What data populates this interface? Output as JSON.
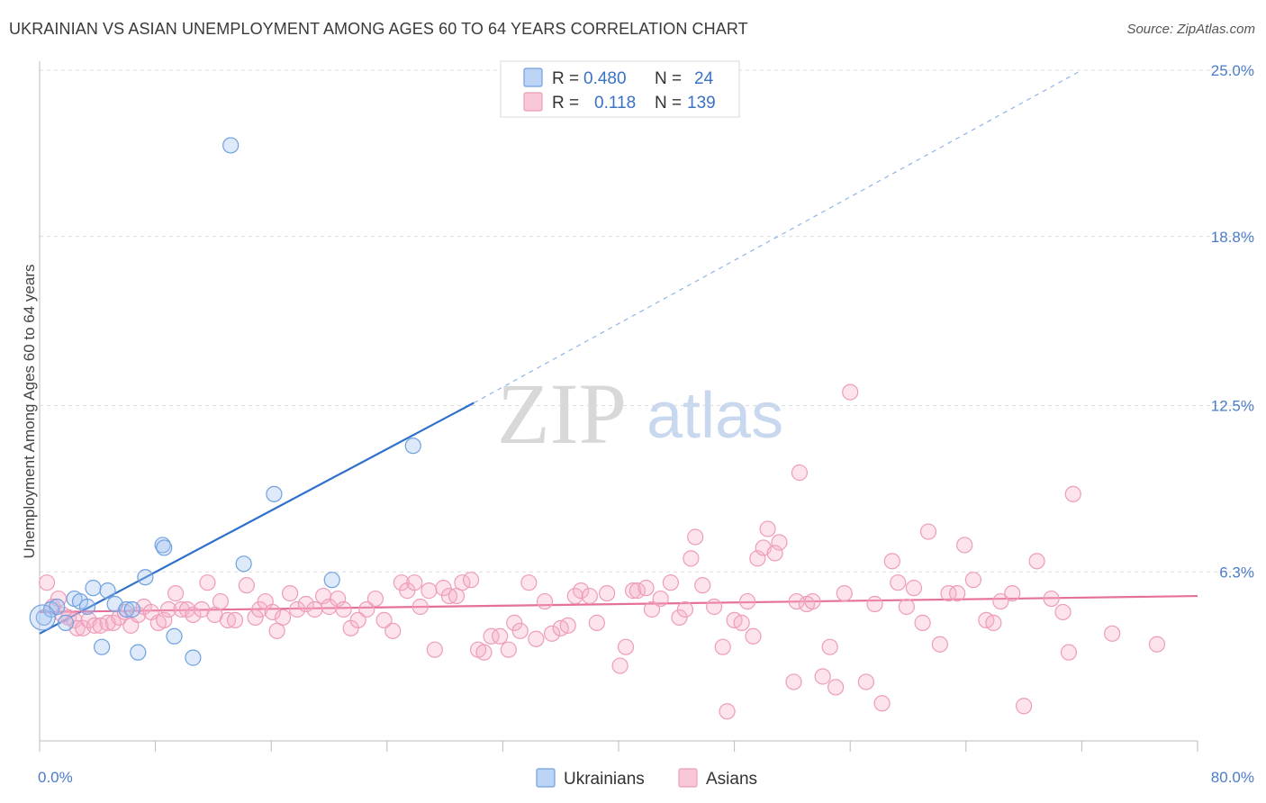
{
  "title": "UKRAINIAN VS ASIAN UNEMPLOYMENT AMONG AGES 60 TO 64 YEARS CORRELATION CHART",
  "source": "Source: ZipAtlas.com",
  "watermark": {
    "zip": "ZIP",
    "atlas": "atlas"
  },
  "legend_top": {
    "rows": [
      {
        "r_label": "R =",
        "r_value": "0.480",
        "n_label": "N =",
        "n_value": "24",
        "color": "#6fa0e0"
      },
      {
        "r_label": "R =",
        "r_value": "0.118",
        "n_label": "N =",
        "n_value": "139",
        "color": "#f0a0bc"
      }
    ]
  },
  "legend_bottom": {
    "items": [
      {
        "label": "Ukrainians",
        "color": "#6fa0e0"
      },
      {
        "label": "Asians",
        "color": "#f0a0bc"
      }
    ]
  },
  "chart_data": {
    "type": "scatter",
    "title": "UKRAINIAN VS ASIAN UNEMPLOYMENT AMONG AGES 60 TO 64 YEARS CORRELATION CHART",
    "xlabel": "",
    "ylabel": "Unemployment Among Ages 60 to 64 years",
    "xlim": [
      0,
      80
    ],
    "ylim": [
      0,
      25
    ],
    "x_tick_labels": [
      "0.0%",
      "80.0%"
    ],
    "y_ticks": [
      6.3,
      12.5,
      18.8,
      25.0
    ],
    "y_tick_labels": [
      "6.3%",
      "12.5%",
      "18.8%",
      "25.0%"
    ],
    "grid": true,
    "series": [
      {
        "name": "Ukrainians",
        "color": "#6fa0e0",
        "trend": {
          "x0": 0,
          "y0": 4.0,
          "x1": 30,
          "y1": 12.6,
          "dashed_to_x": 72,
          "dashed_to_y": 25.0
        },
        "points": [
          [
            0.3,
            4.6
          ],
          [
            0.8,
            4.9
          ],
          [
            1.2,
            5.0
          ],
          [
            1.8,
            4.4
          ],
          [
            2.4,
            5.3
          ],
          [
            2.8,
            5.2
          ],
          [
            3.3,
            5.0
          ],
          [
            3.7,
            5.7
          ],
          [
            4.3,
            3.5
          ],
          [
            4.7,
            5.6
          ],
          [
            5.2,
            5.1
          ],
          [
            6.0,
            4.9
          ],
          [
            6.4,
            4.9
          ],
          [
            6.8,
            3.3
          ],
          [
            7.3,
            6.1
          ],
          [
            8.5,
            7.3
          ],
          [
            8.6,
            7.2
          ],
          [
            9.3,
            3.9
          ],
          [
            10.6,
            3.1
          ],
          [
            13.2,
            22.2
          ],
          [
            14.1,
            6.6
          ],
          [
            16.2,
            9.2
          ],
          [
            20.2,
            6.0
          ],
          [
            25.8,
            11.0
          ]
        ]
      },
      {
        "name": "Asians",
        "color": "#f0a0bc",
        "trend": {
          "x0": 0,
          "y0": 4.8,
          "x1": 80,
          "y1": 5.4
        },
        "points": [
          [
            0.5,
            5.9
          ],
          [
            0.9,
            5.0
          ],
          [
            1.3,
            5.3
          ],
          [
            1.6,
            4.7
          ],
          [
            2.0,
            4.6
          ],
          [
            2.4,
            4.5
          ],
          [
            2.6,
            4.2
          ],
          [
            3.0,
            4.2
          ],
          [
            3.4,
            4.5
          ],
          [
            3.8,
            4.3
          ],
          [
            4.2,
            4.3
          ],
          [
            4.7,
            4.4
          ],
          [
            5.1,
            4.4
          ],
          [
            5.5,
            4.6
          ],
          [
            5.9,
            4.8
          ],
          [
            6.3,
            4.3
          ],
          [
            6.8,
            4.7
          ],
          [
            7.2,
            5.0
          ],
          [
            7.7,
            4.8
          ],
          [
            8.2,
            4.4
          ],
          [
            8.6,
            4.5
          ],
          [
            8.9,
            4.9
          ],
          [
            9.4,
            5.5
          ],
          [
            9.8,
            4.9
          ],
          [
            10.2,
            4.9
          ],
          [
            10.6,
            4.7
          ],
          [
            11.2,
            4.9
          ],
          [
            11.6,
            5.9
          ],
          [
            12.1,
            4.7
          ],
          [
            12.5,
            5.2
          ],
          [
            13.0,
            4.5
          ],
          [
            13.5,
            4.5
          ],
          [
            14.3,
            5.8
          ],
          [
            14.9,
            4.6
          ],
          [
            15.2,
            4.9
          ],
          [
            15.6,
            5.2
          ],
          [
            16.1,
            4.8
          ],
          [
            16.4,
            4.1
          ],
          [
            16.8,
            4.6
          ],
          [
            17.3,
            5.5
          ],
          [
            17.8,
            4.9
          ],
          [
            18.4,
            5.1
          ],
          [
            19.0,
            4.9
          ],
          [
            19.6,
            5.4
          ],
          [
            20.0,
            5.0
          ],
          [
            20.6,
            5.3
          ],
          [
            21.0,
            4.9
          ],
          [
            21.5,
            4.2
          ],
          [
            22.0,
            4.5
          ],
          [
            22.6,
            4.9
          ],
          [
            23.2,
            5.3
          ],
          [
            23.8,
            4.5
          ],
          [
            24.4,
            4.1
          ],
          [
            25.0,
            5.9
          ],
          [
            25.4,
            5.6
          ],
          [
            25.9,
            5.9
          ],
          [
            26.3,
            5.0
          ],
          [
            26.9,
            5.6
          ],
          [
            27.3,
            3.4
          ],
          [
            27.9,
            5.7
          ],
          [
            28.3,
            5.4
          ],
          [
            28.8,
            5.4
          ],
          [
            29.2,
            5.9
          ],
          [
            29.8,
            6.0
          ],
          [
            30.3,
            3.4
          ],
          [
            30.7,
            3.3
          ],
          [
            31.2,
            3.9
          ],
          [
            31.8,
            3.9
          ],
          [
            32.4,
            3.4
          ],
          [
            32.8,
            4.4
          ],
          [
            33.2,
            4.1
          ],
          [
            33.8,
            5.9
          ],
          [
            34.3,
            3.8
          ],
          [
            34.9,
            5.2
          ],
          [
            35.4,
            4.0
          ],
          [
            36.0,
            4.2
          ],
          [
            36.5,
            4.3
          ],
          [
            37.0,
            5.4
          ],
          [
            37.4,
            5.6
          ],
          [
            38.0,
            5.4
          ],
          [
            38.5,
            4.4
          ],
          [
            39.2,
            5.5
          ],
          [
            40.1,
            2.8
          ],
          [
            40.5,
            3.5
          ],
          [
            41.0,
            5.6
          ],
          [
            41.3,
            5.6
          ],
          [
            41.9,
            5.7
          ],
          [
            42.3,
            4.9
          ],
          [
            42.9,
            5.3
          ],
          [
            43.6,
            5.9
          ],
          [
            44.2,
            4.6
          ],
          [
            44.6,
            4.9
          ],
          [
            45.0,
            6.8
          ],
          [
            45.3,
            7.6
          ],
          [
            45.8,
            5.8
          ],
          [
            46.6,
            5.0
          ],
          [
            47.2,
            3.5
          ],
          [
            47.5,
            1.1
          ],
          [
            48.0,
            4.5
          ],
          [
            48.5,
            4.4
          ],
          [
            48.9,
            5.2
          ],
          [
            49.3,
            3.9
          ],
          [
            49.6,
            6.8
          ],
          [
            50.0,
            7.2
          ],
          [
            50.3,
            7.9
          ],
          [
            50.8,
            7.0
          ],
          [
            51.1,
            7.4
          ],
          [
            52.1,
            2.2
          ],
          [
            52.3,
            5.2
          ],
          [
            52.5,
            10.0
          ],
          [
            53.0,
            5.1
          ],
          [
            53.4,
            5.2
          ],
          [
            54.1,
            2.4
          ],
          [
            54.6,
            3.5
          ],
          [
            55.0,
            2.0
          ],
          [
            55.6,
            5.5
          ],
          [
            56.0,
            13.0
          ],
          [
            57.1,
            2.2
          ],
          [
            57.7,
            5.1
          ],
          [
            58.2,
            1.4
          ],
          [
            58.9,
            6.7
          ],
          [
            59.3,
            5.9
          ],
          [
            59.9,
            5.0
          ],
          [
            60.4,
            5.7
          ],
          [
            61.0,
            4.4
          ],
          [
            61.4,
            7.8
          ],
          [
            62.2,
            3.6
          ],
          [
            62.8,
            5.5
          ],
          [
            63.4,
            5.5
          ],
          [
            63.9,
            7.3
          ],
          [
            64.5,
            6.0
          ],
          [
            65.4,
            4.5
          ],
          [
            65.9,
            4.4
          ],
          [
            66.4,
            5.2
          ],
          [
            67.2,
            5.5
          ],
          [
            68.0,
            1.3
          ],
          [
            68.9,
            6.7
          ],
          [
            69.9,
            5.3
          ],
          [
            70.7,
            4.8
          ],
          [
            71.1,
            3.3
          ],
          [
            71.4,
            9.2
          ],
          [
            74.1,
            4.0
          ],
          [
            77.2,
            3.6
          ]
        ]
      }
    ]
  }
}
